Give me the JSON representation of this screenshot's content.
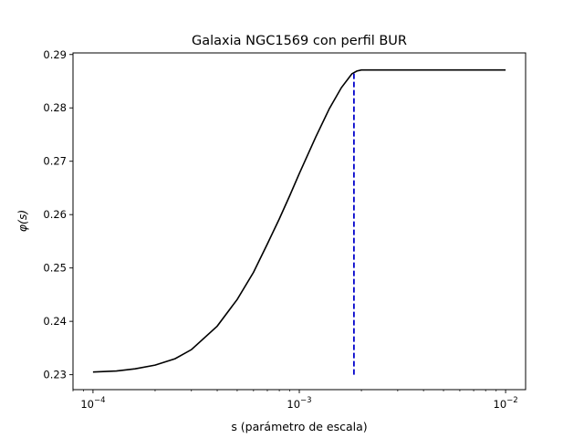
{
  "chart_data": {
    "type": "line",
    "title": "Galaxia NGC1569 con perfil BUR",
    "xlabel": "s (parámetro de escala)",
    "ylabel": "φ(s)",
    "xscale": "log",
    "xlim": [
      8e-05,
      0.0125
    ],
    "ylim": [
      0.2272,
      0.2903
    ],
    "grid": false,
    "x_ticks": [
      {
        "value": 0.0001,
        "base": "10",
        "exp": "−4"
      },
      {
        "value": 0.001,
        "base": "10",
        "exp": "−3"
      },
      {
        "value": 0.01,
        "base": "10",
        "exp": "−2"
      }
    ],
    "y_ticks": [
      0.23,
      0.24,
      0.25,
      0.26,
      0.27,
      0.28,
      0.29
    ],
    "y_tick_labels": [
      "0.23",
      "0.24",
      "0.25",
      "0.26",
      "0.27",
      "0.28",
      "0.29"
    ],
    "series": [
      {
        "color": "#000000",
        "style": "solid",
        "x": [
          0.0001,
          0.00013,
          0.00016,
          0.0002,
          0.00025,
          0.0003,
          0.0004,
          0.0005,
          0.0006,
          0.0007,
          0.0008,
          0.0009,
          0.001,
          0.0012,
          0.0014,
          0.0016,
          0.0018,
          0.0019,
          0.002,
          0.0022,
          0.0025,
          0.003,
          0.004,
          0.005,
          0.007,
          0.01
        ],
        "y": [
          0.2305,
          0.2307,
          0.2311,
          0.2318,
          0.233,
          0.2347,
          0.2391,
          0.2441,
          0.2492,
          0.2545,
          0.2592,
          0.2636,
          0.2677,
          0.2745,
          0.2799,
          0.2838,
          0.2864,
          0.2869,
          0.2871,
          0.2871,
          0.2871,
          0.2871,
          0.2871,
          0.2871,
          0.2871,
          0.2871
        ]
      },
      {
        "color": "#0000cc",
        "style": "dashed",
        "x": [
          0.00184,
          0.00184
        ],
        "y": [
          0.23,
          0.2869
        ]
      }
    ]
  }
}
